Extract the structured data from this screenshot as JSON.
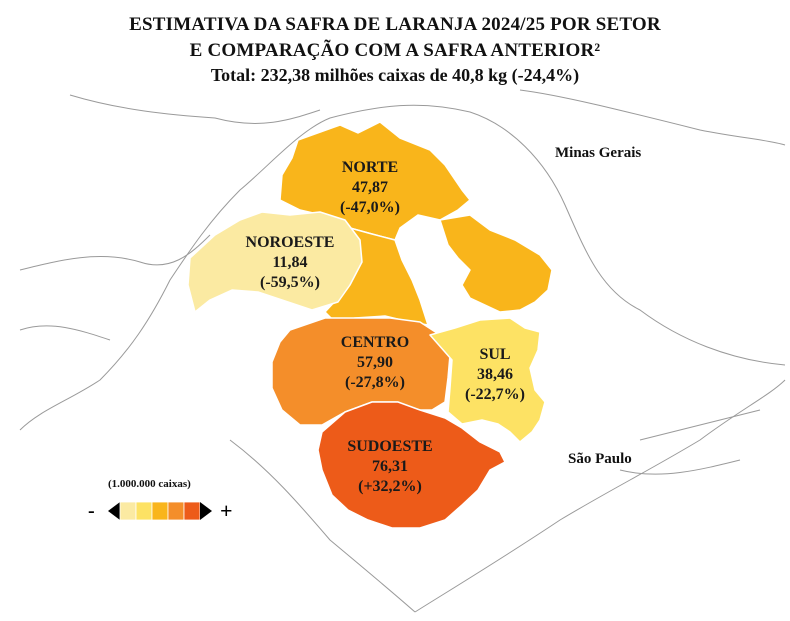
{
  "title": {
    "line1": "ESTIMATIVA DA SAFRA DE LARANJA 2024/25 POR SETOR",
    "line2": "E COMPARAÇÃO COM A SAFRA ANTERIOR²",
    "line3": "Total: 232,38 milhões caixas de 40,8 kg (-24,4%)"
  },
  "states": {
    "mg": "Minas Gerais",
    "sp": "São Paulo"
  },
  "sectors": {
    "norte": {
      "name": "NORTE",
      "value": "47,87",
      "change": "(-47,0%)",
      "color": "#F9B51B"
    },
    "noroeste": {
      "name": "NOROESTE",
      "value": "11,84",
      "change": "(-59,5%)",
      "color": "#FBEAA2"
    },
    "centro": {
      "name": "CENTRO",
      "value": "57,90",
      "change": "(-27,8%)",
      "color": "#F48E2A"
    },
    "sul": {
      "name": "SUL",
      "value": "38,46",
      "change": "(-22,7%)",
      "color": "#FDE264"
    },
    "sudoeste": {
      "name": "SUDOESTE",
      "value": "76,31",
      "change": "(+32,2%)",
      "color": "#ED5B19"
    }
  },
  "legend": {
    "title": "(1.000.000 caixas)",
    "minus": "-",
    "plus": "+",
    "colors": [
      "#FBEAA2",
      "#FDE264",
      "#F9B51B",
      "#F48E2A",
      "#ED5B19"
    ]
  }
}
